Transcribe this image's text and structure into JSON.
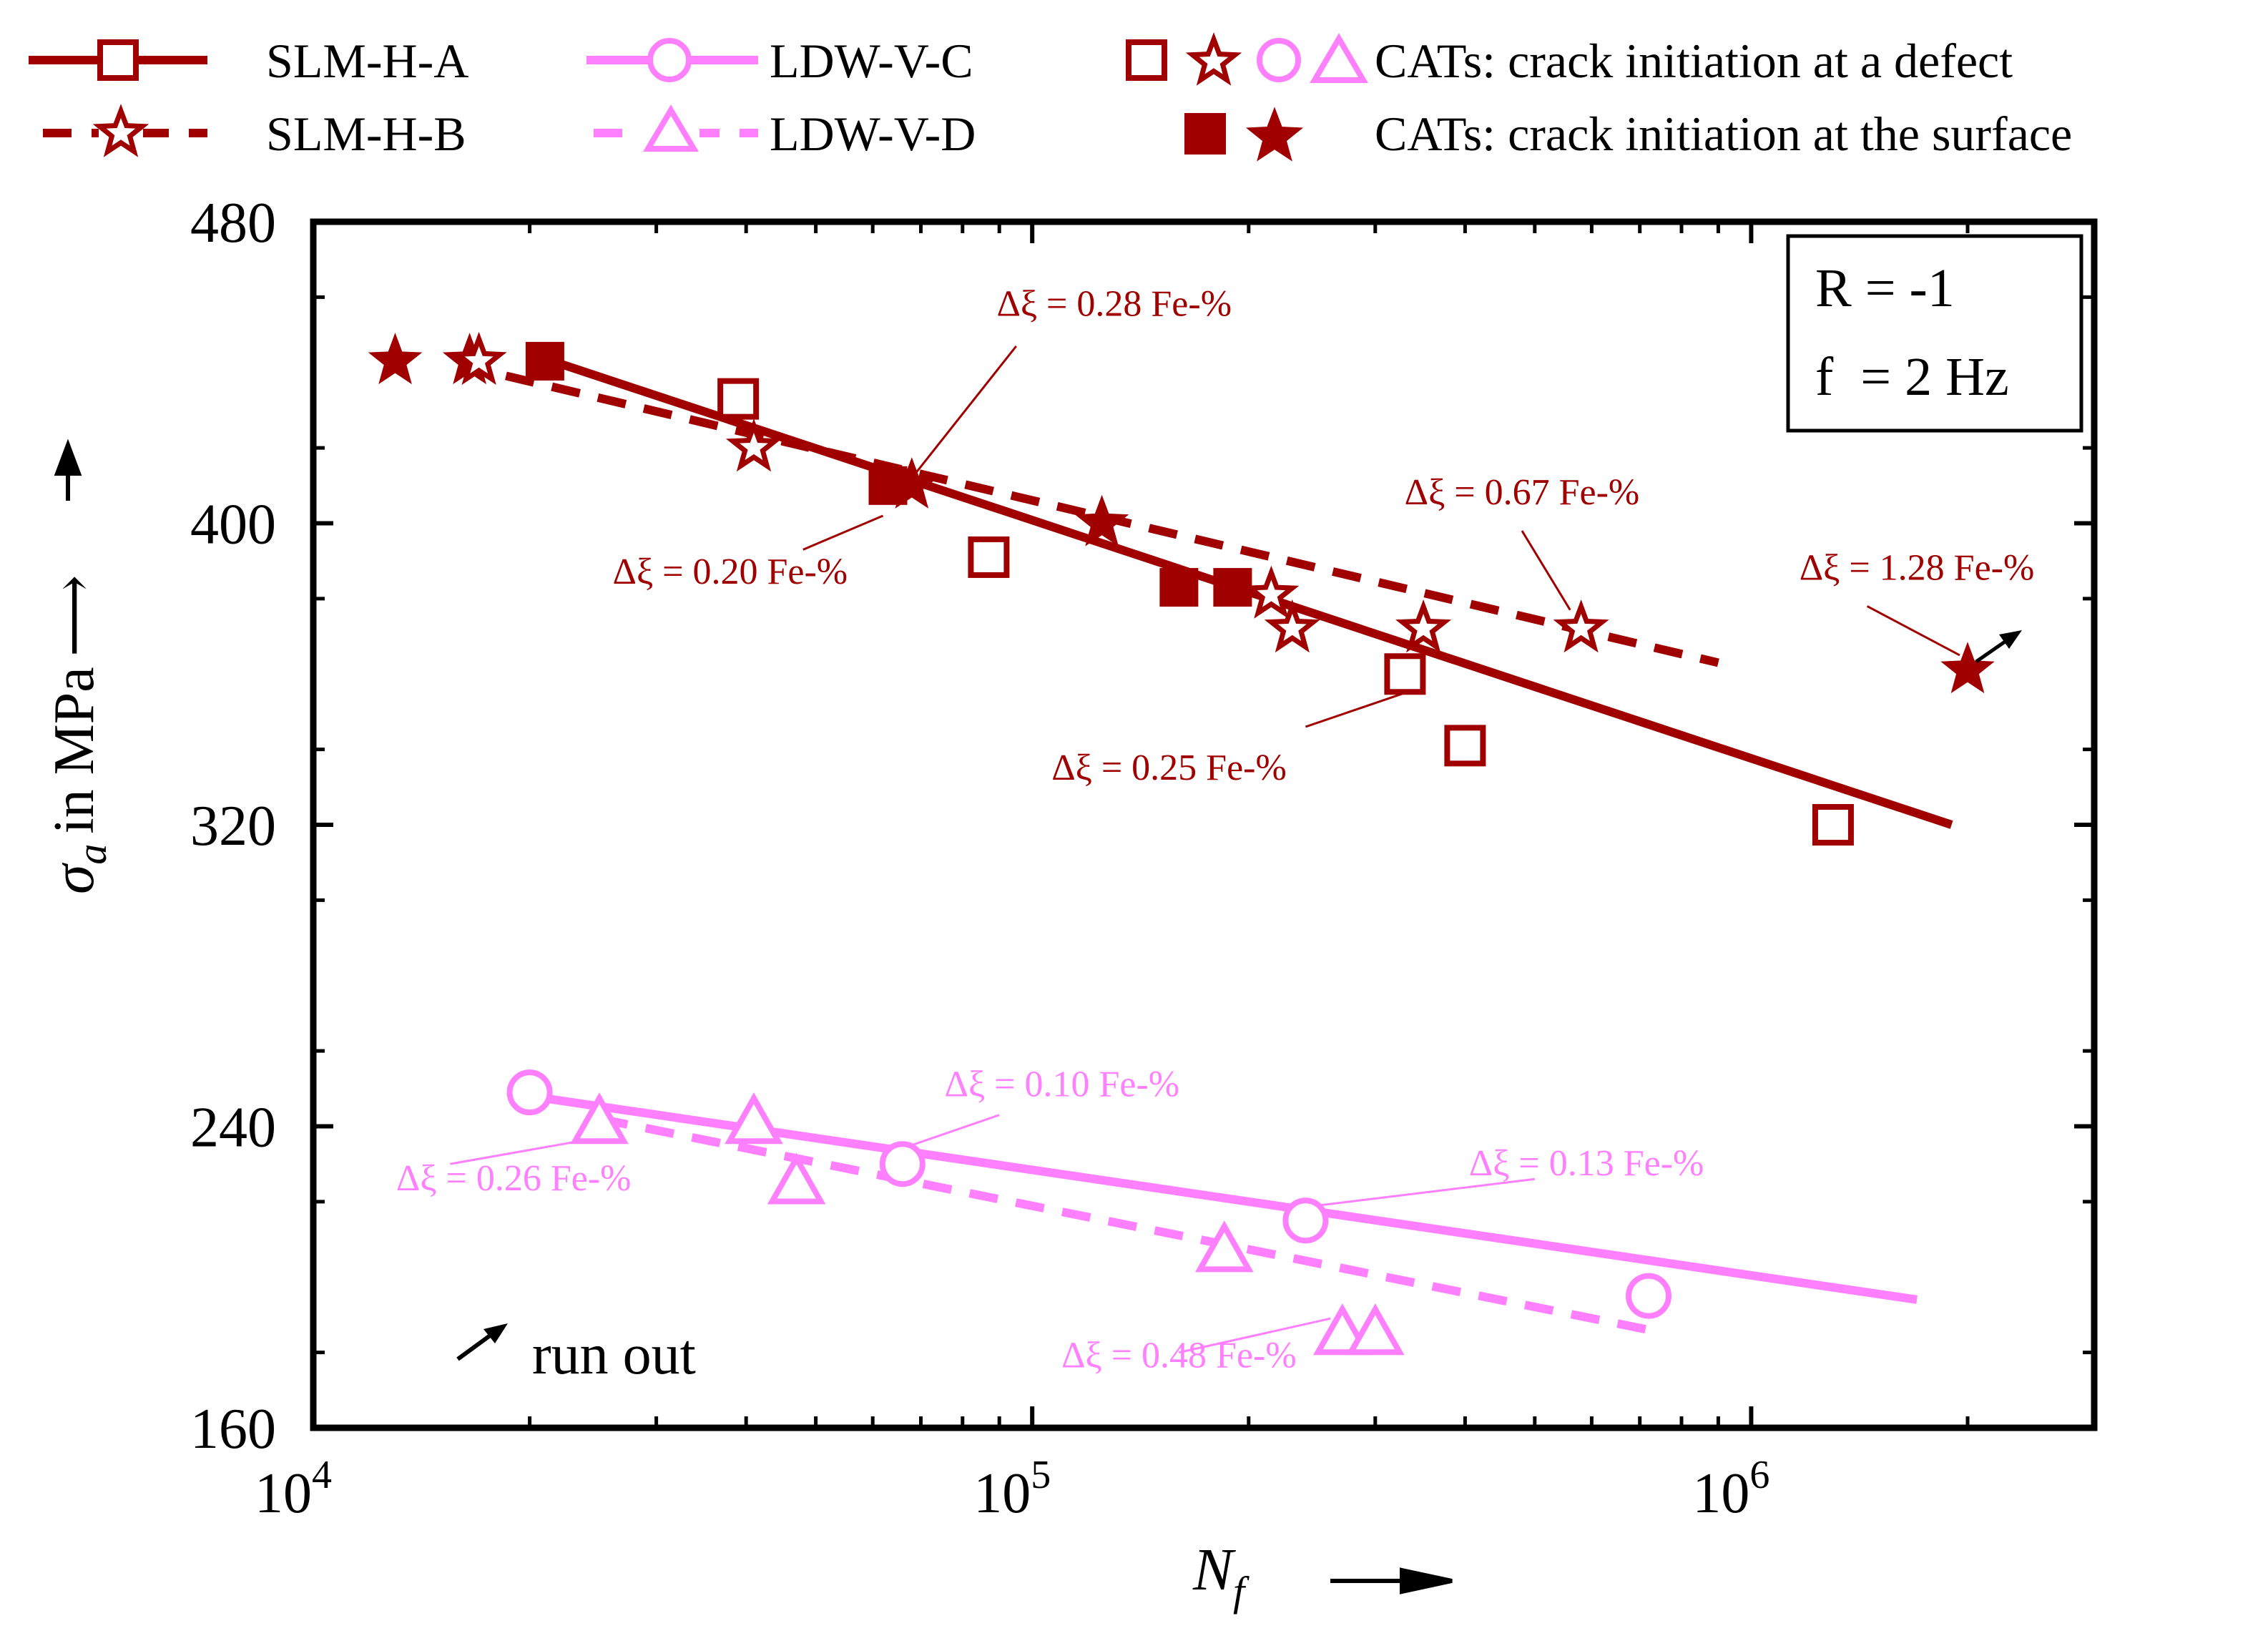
{
  "chart_data": {
    "type": "scatter",
    "x_scale": "log",
    "xlim": [
      10000,
      3000000
    ],
    "ylim": [
      160,
      480
    ],
    "yticks": [
      160,
      240,
      320,
      400,
      480
    ],
    "ytick_labels": [
      "160",
      "240",
      "320",
      "400",
      "480"
    ],
    "xticks": [
      10000,
      100000,
      1000000
    ],
    "xtick_labels": [
      {
        "base": "10",
        "exp": "4"
      },
      {
        "base": "10",
        "exp": "5"
      },
      {
        "base": "10",
        "exp": "6"
      }
    ],
    "xlabel": {
      "symbol": "N",
      "subscript": "f",
      "arrow": "⟶"
    },
    "ylabel": {
      "symbol": "σ",
      "subscript": "a",
      "text": "in MPa",
      "arrow": "⟶"
    },
    "info_box": [
      "R = -1",
      "f  = 2 Hz"
    ],
    "run_out_label": "run out",
    "colors": {
      "slm": "#a00000",
      "ldw": "#ff80ff",
      "black": "#000000"
    },
    "legend": {
      "SLM-H-A": "SLM-H-A",
      "SLM-H-B": "SLM-H-B",
      "LDW-V-C": "LDW-V-C",
      "LDW-V-D": "LDW-V-D",
      "cats_defect": "CATs: crack initiation at a defect",
      "cats_surface": "CATs: crack initiation at the surface"
    },
    "series": [
      {
        "name": "SLM-H-A",
        "marker": "square",
        "color": "#a00000",
        "line_style": "solid",
        "fit_line": [
          [
            20000,
            445
          ],
          [
            1900000,
            320
          ]
        ],
        "points": [
          {
            "x": 21000,
            "y": 443,
            "filled": true
          },
          {
            "x": 39000,
            "y": 433,
            "filled": false
          },
          {
            "x": 63000,
            "y": 410,
            "filled": true
          },
          {
            "x": 87000,
            "y": 391,
            "filled": false
          },
          {
            "x": 160000,
            "y": 383,
            "filled": true
          },
          {
            "x": 190000,
            "y": 383,
            "filled": true
          },
          {
            "x": 330000,
            "y": 360,
            "filled": false
          },
          {
            "x": 400000,
            "y": 341,
            "filled": false
          },
          {
            "x": 1300000,
            "y": 320,
            "filled": false
          }
        ]
      },
      {
        "name": "SLM-H-B",
        "marker": "star",
        "color": "#a00000",
        "line_style": "dashed",
        "fit_line": [
          [
            16000,
            442
          ],
          [
            900000,
            363
          ]
        ],
        "points": [
          {
            "x": 13000,
            "y": 443,
            "filled": true
          },
          {
            "x": 16500,
            "y": 443,
            "filled": true
          },
          {
            "x": 17000,
            "y": 443,
            "filled": false
          },
          {
            "x": 41000,
            "y": 420,
            "filled": false
          },
          {
            "x": 68000,
            "y": 410,
            "filled": true
          },
          {
            "x": 125000,
            "y": 400,
            "filled": true
          },
          {
            "x": 215000,
            "y": 381,
            "filled": false
          },
          {
            "x": 230000,
            "y": 372,
            "filled": false
          },
          {
            "x": 350000,
            "y": 372,
            "filled": false
          },
          {
            "x": 580000,
            "y": 372,
            "filled": false
          },
          {
            "x": 2000000,
            "y": 361,
            "filled": true,
            "run_out": true
          }
        ]
      },
      {
        "name": "LDW-V-C",
        "marker": "circle",
        "color": "#ff80ff",
        "line_style": "solid",
        "fit_line": [
          [
            20000,
            248
          ],
          [
            1700000,
            194
          ]
        ],
        "points": [
          {
            "x": 20000,
            "y": 249,
            "filled": false
          },
          {
            "x": 66000,
            "y": 230,
            "filled": false
          },
          {
            "x": 240000,
            "y": 215,
            "filled": false
          },
          {
            "x": 720000,
            "y": 195,
            "filled": false
          }
        ]
      },
      {
        "name": "LDW-V-D",
        "marker": "triangle",
        "color": "#ff80ff",
        "line_style": "dashed",
        "fit_line": [
          [
            25000,
            242
          ],
          [
            720000,
            186
          ]
        ],
        "points": [
          {
            "x": 25000,
            "y": 241,
            "filled": false
          },
          {
            "x": 41000,
            "y": 241,
            "filled": false
          },
          {
            "x": 47000,
            "y": 225,
            "filled": false
          },
          {
            "x": 185000,
            "y": 207,
            "filled": false
          },
          {
            "x": 270000,
            "y": 185,
            "filled": false
          },
          {
            "x": 300000,
            "y": 185,
            "filled": false
          }
        ]
      }
    ],
    "annotations": [
      {
        "text": "Δξ = 0.28 Fe-%",
        "color": "#a00000",
        "x": 130000,
        "y": 455,
        "anchor": "middle",
        "leader": [
          [
            95000,
            447
          ],
          [
            68000,
            412
          ]
        ]
      },
      {
        "text": "Δξ = 0.20 Fe-%",
        "color": "#a00000",
        "x": 38000,
        "y": 384,
        "anchor": "middle",
        "leader": [
          [
            48000,
            393
          ],
          [
            62000,
            402
          ]
        ]
      },
      {
        "text": "Δξ = 0.67 Fe-%",
        "color": "#a00000",
        "x": 480000,
        "y": 405,
        "anchor": "middle",
        "leader": [
          [
            480000,
            398
          ],
          [
            560000,
            377
          ]
        ]
      },
      {
        "text": "Δξ = 1.28 Fe-%",
        "color": "#a00000",
        "x": 1700000,
        "y": 385,
        "anchor": "middle",
        "leader": [
          [
            1450000,
            378
          ],
          [
            1950000,
            365
          ]
        ]
      },
      {
        "text": "Δξ = 0.25 Fe-%",
        "color": "#a00000",
        "x": 155000,
        "y": 332,
        "anchor": "middle",
        "leader": [
          [
            240000,
            346
          ],
          [
            330000,
            355
          ]
        ]
      },
      {
        "text": "Δξ = 0.10 Fe-%",
        "color": "#ff80ff",
        "x": 110000,
        "y": 248,
        "anchor": "middle",
        "leader": [
          [
            90000,
            243
          ],
          [
            68000,
            235
          ]
        ]
      },
      {
        "text": "Δξ = 0.26 Fe-%",
        "color": "#ff80ff",
        "x": 19000,
        "y": 223,
        "anchor": "middle",
        "leader": [
          [
            15500,
            230
          ],
          [
            25000,
            237
          ]
        ]
      },
      {
        "text": "Δξ = 0.13 Fe-%",
        "color": "#ff80ff",
        "x": 590000,
        "y": 227,
        "anchor": "middle",
        "leader": [
          [
            500000,
            226
          ],
          [
            250000,
            219
          ]
        ]
      },
      {
        "text": "Δξ = 0.48 Fe-%",
        "color": "#ff80ff",
        "x": 160000,
        "y": 176,
        "anchor": "middle",
        "leader": [
          [
            160000,
            180
          ],
          [
            260000,
            189
          ]
        ]
      }
    ]
  }
}
